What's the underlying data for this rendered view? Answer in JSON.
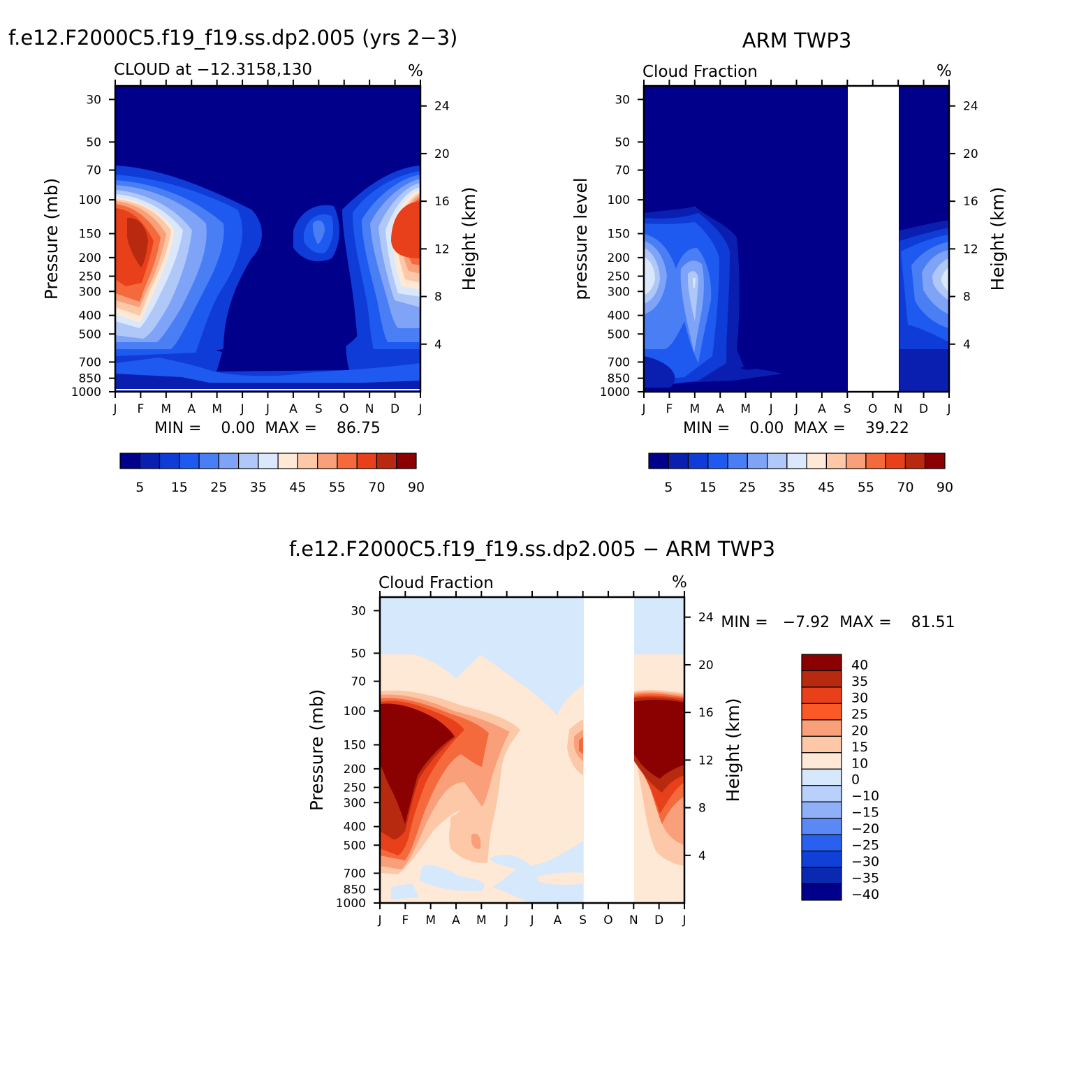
{
  "panels": {
    "model": {
      "title": "f.e12.F2000C5.f19_f19.ss.dp2.005 (yrs 2−3)",
      "left_title": "CLOUD at −12.3158,130",
      "unit": "%",
      "ylabel_left": "Pressure (mb)",
      "ylabel_right": "Height (km)",
      "minmax": "MIN =    0.00  MAX =    86.75"
    },
    "obs": {
      "title": "ARM TWP3",
      "left_title": "Cloud Fraction",
      "unit": "%",
      "ylabel_left": "pressure level",
      "ylabel_right": "Height (km)",
      "minmax": "MIN =    0.00  MAX =    39.22"
    },
    "diff": {
      "title": "f.e12.F2000C5.f19_f19.ss.dp2.005 − ARM TWP3",
      "left_title": "Cloud Fraction",
      "unit": "%",
      "ylabel_left": "Pressure (mb)",
      "ylabel_right": "Height (km)",
      "minmax": "MIN =   −7.92  MAX =    81.51"
    }
  },
  "colorbars": {
    "abs": {
      "colors": [
        "#00008b",
        "#0a1fb0",
        "#0f3cd6",
        "#1e5af0",
        "#4a7ef5",
        "#7fa3f7",
        "#b0c8f8",
        "#dbe8fc",
        "#fee8d6",
        "#fcc8a8",
        "#f9a07a",
        "#f56a3c",
        "#e8401a",
        "#b82a10",
        "#8b0000"
      ],
      "labels": [
        "5",
        "15",
        "25",
        "35",
        "45",
        "55",
        "70",
        "90"
      ]
    },
    "diff": {
      "colors": [
        "#8b0000",
        "#b82a10",
        "#e8401a",
        "#fb5a28",
        "#f9a07a",
        "#fcc8a8",
        "#fee8d6",
        "#d6e8fc",
        "#b8d0fa",
        "#8fb0f7",
        "#5a88f5",
        "#2a60f0",
        "#1040d8",
        "#0a28b0",
        "#00008b"
      ],
      "labels": [
        "40",
        "35",
        "30",
        "25",
        "20",
        "15",
        "10",
        "0",
        "−10",
        "−15",
        "−20",
        "−25",
        "−30",
        "−35",
        "−40"
      ]
    }
  },
  "chart_data": [
    {
      "type": "heatmap",
      "title": "f.e12.F2000C5.f19_f19.ss.dp2.005 (yrs 2−3)",
      "subtitle": "CLOUD at −12.3158,130",
      "xlabel": "",
      "ylabel": "Pressure (mb)",
      "ylabel_right": "Height (km)",
      "x_ticks": [
        "J",
        "F",
        "M",
        "A",
        "M",
        "J",
        "J",
        "A",
        "S",
        "O",
        "N",
        "D",
        "J"
      ],
      "y_ticks": [
        30,
        50,
        70,
        100,
        150,
        200,
        250,
        300,
        400,
        500,
        700,
        850,
        1000
      ],
      "y_right_ticks": [
        24,
        20,
        16,
        12,
        8,
        4
      ],
      "min": 0.0,
      "max": 86.75,
      "units": "%",
      "approx_peak": {
        "month": "F",
        "pressure_mb": 150,
        "value": 86.75
      }
    },
    {
      "type": "heatmap",
      "title": "ARM TWP3",
      "subtitle": "Cloud Fraction",
      "ylabel": "pressure level",
      "ylabel_right": "Height (km)",
      "x_ticks": [
        "J",
        "F",
        "M",
        "A",
        "M",
        "J",
        "J",
        "A",
        "S",
        "O",
        "N",
        "D",
        "J"
      ],
      "y_ticks": [
        30,
        50,
        70,
        100,
        150,
        200,
        250,
        300,
        400,
        500,
        700,
        850,
        1000
      ],
      "y_right_ticks": [
        24,
        20,
        16,
        12,
        8,
        4
      ],
      "min": 0.0,
      "max": 39.22,
      "units": "%",
      "missing_months": [
        "S",
        "O"
      ]
    },
    {
      "type": "heatmap",
      "title": "f.e12.F2000C5.f19_f19.ss.dp2.005 − ARM TWP3",
      "subtitle": "Cloud Fraction",
      "ylabel": "Pressure (mb)",
      "ylabel_right": "Height (km)",
      "x_ticks": [
        "J",
        "F",
        "M",
        "A",
        "M",
        "J",
        "J",
        "A",
        "S",
        "O",
        "N",
        "D",
        "J"
      ],
      "y_ticks": [
        30,
        50,
        70,
        100,
        150,
        200,
        250,
        300,
        400,
        500,
        700,
        850,
        1000
      ],
      "y_right_ticks": [
        24,
        20,
        16,
        12,
        8,
        4
      ],
      "min": -7.92,
      "max": 81.51,
      "units": "%",
      "missing_months": [
        "S",
        "O"
      ]
    }
  ]
}
